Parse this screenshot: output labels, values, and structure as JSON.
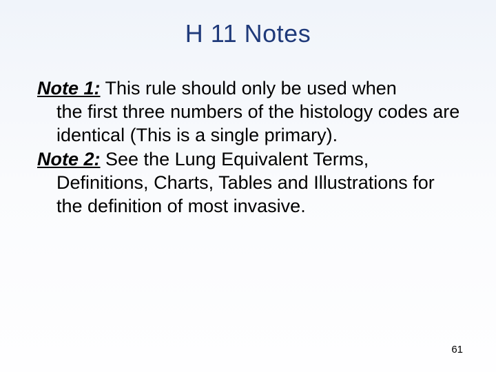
{
  "slide": {
    "title": "H 11 Notes",
    "notes": [
      {
        "label": "Note 1:",
        "firstLine": " This rule should only be used when",
        "continuation": "the first three numbers of the histology codes are identical (This is a single primary)."
      },
      {
        "label": "Note 2:",
        "firstLine": " See the Lung Equivalent Terms,",
        "continuation": "Definitions, Charts, Tables and Illustrations for the definition of most invasive."
      }
    ],
    "pageNumber": "61"
  },
  "styling": {
    "title_color": "#1f3a7a",
    "title_fontsize": 36,
    "body_color": "#000000",
    "body_fontsize": 27,
    "background_gradient_top": "#f0f4fa",
    "background_gradient_bottom": "#fefeff",
    "pagenum_fontsize": 15
  }
}
